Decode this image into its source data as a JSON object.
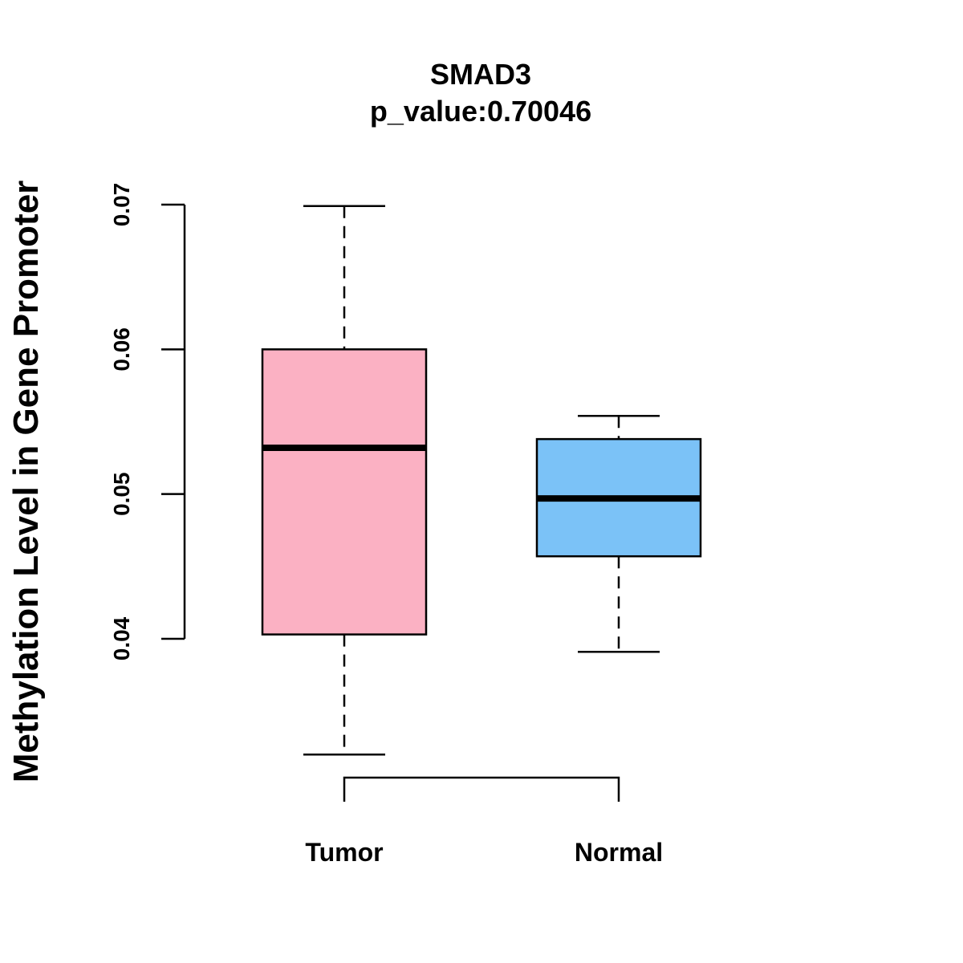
{
  "chart_data": {
    "type": "boxplot",
    "title": "SMAD3",
    "subtitle": "p_value:0.70046",
    "ylabel": "Methylation Level in Gene Promoter",
    "xlabel": "",
    "ylim": [
      0.04,
      0.07
    ],
    "yticks": [
      0.04,
      0.05,
      0.06,
      0.07
    ],
    "ytick_labels": [
      "0.04",
      "0.05",
      "0.06",
      "0.07"
    ],
    "grid": false,
    "groups": [
      {
        "name": "Tumor",
        "color": "#FBB1C3",
        "whisker_low": 0.032,
        "q1": 0.0403,
        "median": 0.0532,
        "q3": 0.06,
        "whisker_high": 0.0699
      },
      {
        "name": "Normal",
        "color": "#7BC2F7",
        "whisker_low": 0.0391,
        "q1": 0.0457,
        "median": 0.0497,
        "q3": 0.0538,
        "whisker_high": 0.0554
      }
    ],
    "comparison_bracket": [
      "Tumor",
      "Normal"
    ]
  }
}
